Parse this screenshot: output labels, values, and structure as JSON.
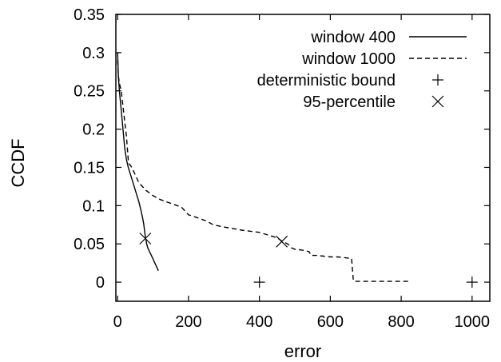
{
  "chart_data": {
    "type": "line",
    "xlabel": "error",
    "ylabel": "CCDF",
    "xlim": [
      -5,
      1050
    ],
    "ylim": [
      -0.025,
      0.35
    ],
    "x_ticks": [
      0,
      200,
      400,
      600,
      800,
      1000
    ],
    "x_tick_labels": [
      "0",
      "200",
      "400",
      "600",
      "800",
      "1000"
    ],
    "y_ticks": [
      0,
      0.05,
      0.1,
      0.15,
      0.2,
      0.25,
      0.3,
      0.35
    ],
    "y_tick_labels": [
      "0",
      "0.05",
      "0.1",
      "0.15",
      "0.2",
      "0.25",
      "0.3",
      "0.35"
    ],
    "grid": false,
    "legend_position": "top-right",
    "series": [
      {
        "name": "window 400",
        "style": "solid",
        "color": "#000000",
        "x": [
          0,
          2,
          5,
          10,
          15,
          20,
          25,
          30,
          40,
          50,
          60,
          65,
          70,
          72,
          74,
          78,
          82,
          85,
          90,
          95,
          100,
          110,
          115
        ],
        "y": [
          0.3,
          0.27,
          0.25,
          0.225,
          0.2,
          0.175,
          0.16,
          0.15,
          0.135,
          0.12,
          0.105,
          0.095,
          0.085,
          0.08,
          0.075,
          0.06,
          0.05,
          0.045,
          0.04,
          0.035,
          0.03,
          0.02,
          0.015
        ]
      },
      {
        "name": "window 1000",
        "style": "dashed",
        "color": "#000000",
        "x": [
          0,
          2,
          5,
          10,
          15,
          20,
          25,
          30,
          32,
          40,
          50,
          60,
          80,
          100,
          120,
          150,
          180,
          190,
          200,
          220,
          250,
          270,
          300,
          350,
          400,
          450,
          465,
          480,
          490,
          500,
          520,
          540,
          545,
          560,
          580,
          600,
          620,
          640,
          660,
          665,
          670,
          680,
          700,
          750,
          800,
          820
        ],
        "y": [
          0.29,
          0.27,
          0.26,
          0.25,
          0.23,
          0.21,
          0.19,
          0.16,
          0.155,
          0.15,
          0.14,
          0.13,
          0.12,
          0.113,
          0.108,
          0.103,
          0.098,
          0.093,
          0.088,
          0.085,
          0.08,
          0.075,
          0.072,
          0.068,
          0.065,
          0.058,
          0.053,
          0.05,
          0.045,
          0.043,
          0.042,
          0.04,
          0.035,
          0.035,
          0.034,
          0.033,
          0.033,
          0.032,
          0.031,
          0.002,
          0.001,
          0.001,
          0.001,
          0.001,
          0.001,
          0.001
        ]
      }
    ],
    "markers": [
      {
        "name": "deterministic bound",
        "symbol": "plus",
        "points": [
          [
            400,
            0
          ],
          [
            1000,
            0
          ]
        ]
      },
      {
        "name": "95-percentile",
        "symbol": "cross",
        "points": [
          [
            78,
            0.057
          ],
          [
            463,
            0.053
          ]
        ]
      }
    ]
  }
}
